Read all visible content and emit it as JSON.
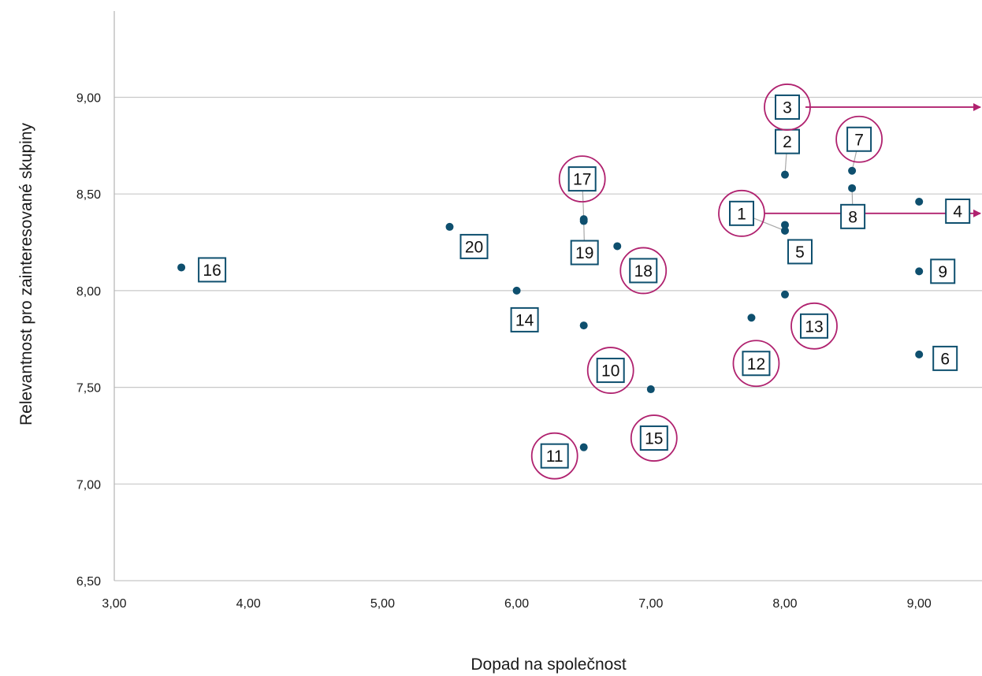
{
  "chart_data": {
    "type": "scatter",
    "title": "",
    "xlabel": "Dopad na společnost",
    "ylabel": "Relevantnost pro zainteresované skupiny",
    "xlim": [
      3.0,
      9.5
    ],
    "ylim": [
      6.5,
      9.5
    ],
    "xticks": [
      3,
      4,
      5,
      6,
      7,
      8,
      9
    ],
    "xtick_labels": [
      "3,00",
      "4,00",
      "5,00",
      "6,00",
      "7,00",
      "8,00",
      "9,00"
    ],
    "yticks": [
      6.5,
      7.0,
      7.5,
      8.0,
      8.5,
      9.0
    ],
    "ytick_labels": [
      "6,50",
      "7,00",
      "7,50",
      "8,00",
      "8,50",
      "9,00"
    ],
    "grid": "horizontal",
    "points": [
      {
        "label": "1",
        "x": 8.0,
        "y": 8.31,
        "highlight": true,
        "arrow": true
      },
      {
        "label": "2",
        "x": 8.0,
        "y": 8.6,
        "highlight": false
      },
      {
        "label": "3",
        "x": 8.0,
        "y": 8.77,
        "highlight": true,
        "arrow": true
      },
      {
        "label": "4",
        "x": 9.0,
        "y": 8.46,
        "highlight": false
      },
      {
        "label": "5",
        "x": 8.0,
        "y": 8.34,
        "highlight": false
      },
      {
        "label": "6",
        "x": 9.0,
        "y": 7.67,
        "highlight": false
      },
      {
        "label": "7",
        "x": 8.5,
        "y": 8.62,
        "highlight": true
      },
      {
        "label": "8",
        "x": 8.5,
        "y": 8.53,
        "highlight": false
      },
      {
        "label": "9",
        "x": 9.0,
        "y": 8.1,
        "highlight": false
      },
      {
        "label": "10",
        "x": 6.5,
        "y": 7.82,
        "highlight": true
      },
      {
        "label": "11",
        "x": 6.5,
        "y": 7.19,
        "highlight": true
      },
      {
        "label": "12",
        "x": 7.75,
        "y": 7.86,
        "highlight": true
      },
      {
        "label": "13",
        "x": 8.0,
        "y": 7.98,
        "highlight": true
      },
      {
        "label": "14",
        "x": 6.0,
        "y": 8.0,
        "highlight": false
      },
      {
        "label": "15",
        "x": 7.0,
        "y": 7.49,
        "highlight": true
      },
      {
        "label": "16",
        "x": 3.5,
        "y": 8.12,
        "highlight": false
      },
      {
        "label": "17",
        "x": 6.5,
        "y": 8.37,
        "highlight": true
      },
      {
        "label": "18",
        "x": 6.75,
        "y": 8.23,
        "highlight": true
      },
      {
        "label": "19",
        "x": 6.5,
        "y": 8.36,
        "highlight": false
      },
      {
        "label": "20",
        "x": 5.5,
        "y": 8.33,
        "highlight": false
      }
    ]
  },
  "colors": {
    "point": "#0e4f6e",
    "label_border": "#0e4f6e",
    "highlight": "#b0226f",
    "grid": "#c8c8c8",
    "axis": "#b5b5b5",
    "leader": "#a8a8a8"
  }
}
